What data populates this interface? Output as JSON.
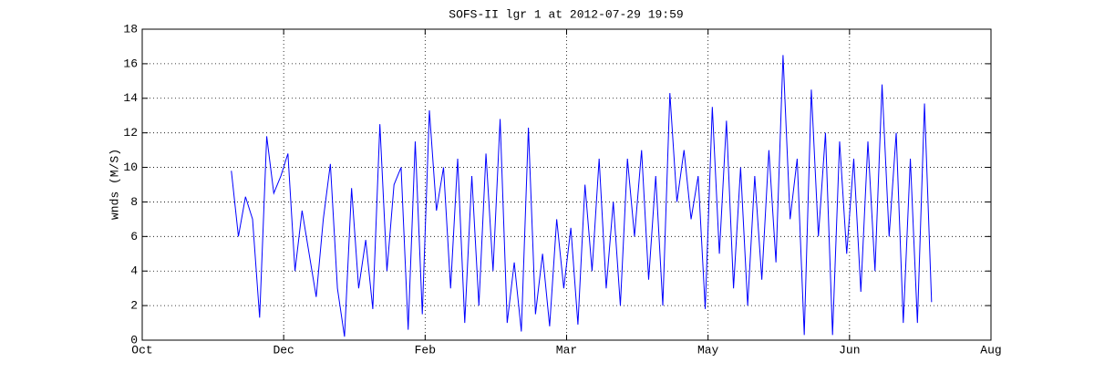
{
  "chart_data": {
    "type": "line",
    "title": "SOFS-II lgr 1 at 2012-07-29 19:59",
    "ylabel": "wnds (M/S)",
    "xlim": [
      0,
      6
    ],
    "xticks": [
      {
        "value": 0,
        "label": "Oct"
      },
      {
        "value": 1,
        "label": "Dec"
      },
      {
        "value": 2,
        "label": "Feb"
      },
      {
        "value": 3,
        "label": "Mar"
      },
      {
        "value": 4,
        "label": "May"
      },
      {
        "value": 5,
        "label": "Jun"
      },
      {
        "value": 6,
        "label": "Aug"
      }
    ],
    "ylim": [
      0,
      18
    ],
    "yticks": [
      0,
      2,
      4,
      6,
      8,
      10,
      12,
      14,
      16,
      18
    ],
    "grid": true,
    "x": [
      0.63,
      0.68,
      0.73,
      0.78,
      0.83,
      0.88,
      0.93,
      0.98,
      1.03,
      1.08,
      1.13,
      1.18,
      1.23,
      1.28,
      1.33,
      1.38,
      1.43,
      1.48,
      1.53,
      1.58,
      1.63,
      1.68,
      1.73,
      1.78,
      1.83,
      1.88,
      1.93,
      1.98,
      2.03,
      2.08,
      2.13,
      2.18,
      2.23,
      2.28,
      2.33,
      2.38,
      2.43,
      2.48,
      2.53,
      2.58,
      2.63,
      2.68,
      2.73,
      2.78,
      2.83,
      2.88,
      2.93,
      2.98,
      3.03,
      3.08,
      3.13,
      3.18,
      3.23,
      3.28,
      3.33,
      3.38,
      3.43,
      3.48,
      3.53,
      3.58,
      3.63,
      3.68,
      3.73,
      3.78,
      3.83,
      3.88,
      3.93,
      3.98,
      4.03,
      4.08,
      4.13,
      4.18,
      4.23,
      4.28,
      4.33,
      4.38,
      4.43,
      4.48,
      4.53,
      4.58,
      4.63,
      4.68,
      4.73,
      4.78,
      4.83,
      4.88,
      4.93,
      4.98,
      5.03,
      5.08,
      5.13,
      5.18,
      5.23,
      5.28,
      5.33,
      5.38,
      5.43,
      5.48,
      5.53,
      5.58
    ],
    "series": [
      {
        "color": "#0000ff",
        "values": [
          9.8,
          6,
          8.3,
          7,
          1.3,
          11.8,
          8.5,
          9.5,
          10.8,
          4,
          7.5,
          5,
          2.5,
          7,
          10.2,
          3,
          0.2,
          8.8,
          3,
          5.8,
          1.8,
          12.5,
          4,
          9,
          10,
          0.6,
          11.5,
          1.5,
          13.3,
          7.5,
          10,
          3,
          10.5,
          1,
          9.5,
          2,
          10.8,
          4,
          12.8,
          1,
          4.5,
          0.5,
          12.3,
          1.5,
          5,
          0.8,
          7,
          3,
          6.5,
          0.9,
          9,
          4,
          10.5,
          3,
          8,
          2,
          10.5,
          6,
          11,
          3.5,
          9.5,
          2,
          14.3,
          8,
          11,
          7,
          9.5,
          1.8,
          13.5,
          5,
          12.7,
          3,
          10,
          2,
          9.5,
          3.5,
          11,
          4.5,
          16.5,
          7,
          10.5,
          0.3,
          14.5,
          6,
          12,
          0.3,
          11.5,
          5,
          10.5,
          2.8,
          11.5,
          4,
          14.8,
          6,
          12,
          1,
          10.5,
          1,
          13.7,
          2.2
        ]
      }
    ]
  }
}
